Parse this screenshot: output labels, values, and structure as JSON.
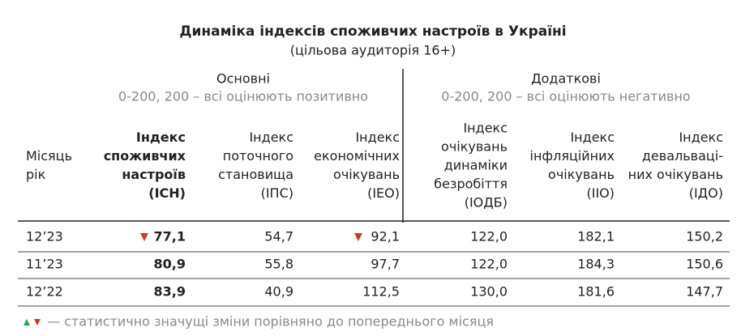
{
  "title": "Динаміка індексів споживчих настроїв в Україні",
  "subtitle": "(цільова аудиторія 16+)",
  "groups": [
    {
      "label": "Основні",
      "note": "0-200, 200 – всі оцінюють позитивно"
    },
    {
      "label": "Додаткові",
      "note": "0-200, 200 – всі оцінюють негативно"
    }
  ],
  "table": {
    "header": [
      [
        "Місяць",
        "рік"
      ],
      [
        "Індекс",
        "споживчих",
        "настроїв",
        "(ІСН)"
      ],
      [
        "Індекс",
        "поточного",
        "становища",
        "(ІПС)"
      ],
      [
        "Індекс",
        "економічних",
        "очікувань",
        "(ІЕО)"
      ],
      [
        "Індекс",
        "очікувань",
        "динаміки",
        "безробіття",
        "(ІОДБ)"
      ],
      [
        "Індекс",
        "інфляційних",
        "очікувань",
        "(ІІО)"
      ],
      [
        "Індекс",
        "девальваці-",
        "них очікувань",
        "(ІДО)"
      ]
    ],
    "rows": [
      [
        "12’23",
        "77,1",
        "54,7",
        "92,1",
        "122,0",
        "182,1",
        "150,2"
      ],
      [
        "11’23",
        "80,9",
        "55,8",
        "97,7",
        "122,0",
        "184,3",
        "150,6"
      ],
      [
        "12’22",
        "83,9",
        "40,9",
        "112,5",
        "130,0",
        "181,6",
        "147,7"
      ]
    ]
  },
  "legend": "— статистично значущі зміни порівняно до попереднього місяця"
}
